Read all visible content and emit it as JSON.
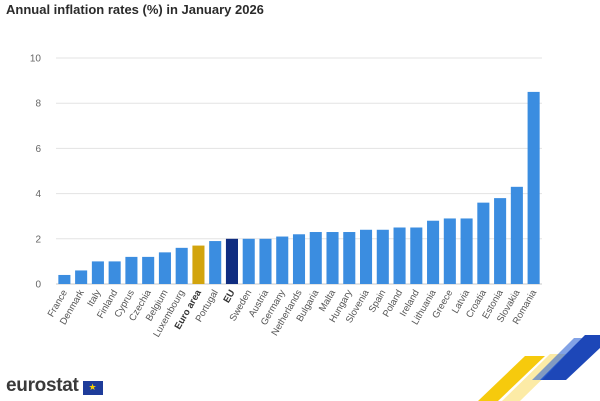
{
  "title": "Annual inflation rates (%) in January 2026",
  "logo": {
    "text": "eurostat",
    "flag_icon": "eu-flag-icon"
  },
  "colors": {
    "default": "#3b8de0",
    "euro_area": "#d2a40d",
    "eu": "#0f2c80"
  },
  "chart_data": {
    "type": "bar",
    "title": "Annual inflation rates (%) in January 2026",
    "xlabel": "",
    "ylabel": "",
    "ylim": [
      0,
      10
    ],
    "yticks": [
      0,
      2,
      4,
      6,
      8,
      10
    ],
    "grid": true,
    "categories": [
      "France",
      "Denmark",
      "Italy",
      "Finland",
      "Cyprus",
      "Czechia",
      "Belgium",
      "Luxembourg",
      "Euro area",
      "Portugal",
      "EU",
      "Sweden",
      "Austria",
      "Germany",
      "Netherlands",
      "Bulgaria",
      "Malta",
      "Hungary",
      "Slovenia",
      "Spain",
      "Poland",
      "Ireland",
      "Lithuania",
      "Greece",
      "Latvia",
      "Croatia",
      "Estonia",
      "Slovakia",
      "Romania"
    ],
    "values": [
      0.4,
      0.6,
      1.0,
      1.0,
      1.2,
      1.2,
      1.4,
      1.6,
      1.7,
      1.9,
      2.0,
      2.0,
      2.0,
      2.1,
      2.2,
      2.3,
      2.3,
      2.3,
      2.4,
      2.4,
      2.5,
      2.5,
      2.8,
      2.9,
      2.9,
      3.6,
      3.8,
      4.3,
      8.5
    ],
    "highlight": {
      "Euro area": "euro_area",
      "EU": "eu"
    },
    "bold_labels": [
      "Euro area",
      "EU"
    ]
  }
}
